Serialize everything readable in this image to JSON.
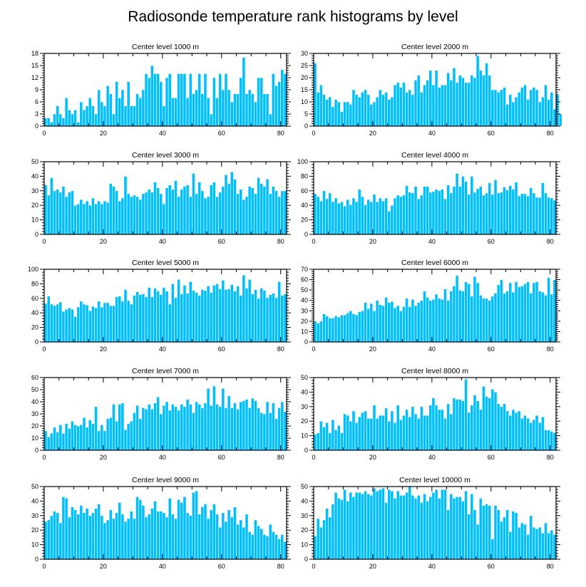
{
  "figure": {
    "title": "Radiosonde temperature rank histograms by level"
  },
  "colors": {
    "bar": "#00bfff",
    "bar_edge": "#ffffff",
    "frame": "#000000"
  },
  "chart_data": [
    {
      "type": "bar",
      "title": "Center level 1000 m",
      "xlim": [
        0,
        82
      ],
      "ylim": [
        0,
        18
      ],
      "xticks": [
        0,
        20,
        40,
        60,
        80
      ],
      "yticks": [
        0,
        3,
        6,
        9,
        12,
        15,
        18
      ],
      "values": [
        2,
        2,
        1,
        3,
        5,
        3,
        2,
        7,
        4,
        3,
        4,
        1,
        6,
        4,
        5,
        7,
        5,
        3,
        9,
        6,
        5,
        10,
        8,
        3,
        11,
        7,
        9,
        5,
        11,
        5,
        5,
        8,
        7,
        9,
        13,
        12,
        15,
        13,
        13,
        11,
        5,
        12,
        13,
        7,
        7,
        13,
        13,
        13,
        7,
        13,
        8,
        9,
        13,
        8,
        13,
        7,
        3,
        12,
        7,
        13,
        9,
        13,
        9,
        6,
        8,
        8,
        12,
        17,
        8,
        9,
        8,
        6,
        12,
        12,
        8,
        8,
        3,
        13,
        10,
        11,
        14,
        13
      ]
    },
    {
      "type": "bar",
      "title": "Center level 2000 m",
      "xlim": [
        0,
        82
      ],
      "ylim": [
        0,
        30
      ],
      "xticks": [
        0,
        20,
        40,
        60,
        80
      ],
      "yticks": [
        0,
        5,
        10,
        15,
        20,
        25,
        30
      ],
      "values": [
        26,
        14,
        17,
        13,
        11,
        12,
        8,
        11,
        10,
        6,
        10,
        10,
        9,
        15,
        13,
        12,
        14,
        15,
        13,
        9,
        10,
        12,
        15,
        13,
        14,
        11,
        12,
        17,
        18,
        16,
        18,
        14,
        15,
        13,
        19,
        21,
        14,
        17,
        19,
        23,
        17,
        23,
        16,
        17,
        17,
        22,
        19,
        24,
        18,
        21,
        20,
        18,
        18,
        21,
        20,
        29,
        23,
        21,
        26,
        21,
        15,
        15,
        14,
        15,
        16,
        9,
        13,
        10,
        12,
        14,
        16,
        17,
        11,
        15,
        16,
        15,
        10,
        12,
        17,
        11,
        14,
        7,
        13,
        5
      ]
    },
    {
      "type": "bar",
      "title": "Center level 3000 m",
      "xlim": [
        0,
        82
      ],
      "ylim": [
        0,
        50
      ],
      "xticks": [
        0,
        20,
        40,
        60,
        80
      ],
      "yticks": [
        0,
        10,
        20,
        30,
        40,
        50
      ],
      "values": [
        34,
        27,
        39,
        30,
        31,
        29,
        33,
        26,
        29,
        30,
        20,
        21,
        24,
        21,
        23,
        20,
        25,
        21,
        23,
        21,
        23,
        22,
        35,
        33,
        30,
        23,
        25,
        40,
        28,
        26,
        27,
        26,
        24,
        28,
        29,
        31,
        29,
        36,
        32,
        28,
        21,
        32,
        34,
        31,
        37,
        26,
        31,
        33,
        34,
        26,
        42,
        28,
        36,
        30,
        25,
        26,
        34,
        36,
        26,
        29,
        33,
        41,
        35,
        43,
        38,
        28,
        31,
        24,
        26,
        33,
        32,
        28,
        39,
        35,
        33,
        38,
        28,
        33,
        30,
        26,
        30,
        30
      ]
    },
    {
      "type": "bar",
      "title": "Center level 4000 m",
      "xlim": [
        0,
        82
      ],
      "ylim": [
        0,
        100
      ],
      "xticks": [
        0,
        20,
        40,
        60,
        80
      ],
      "yticks": [
        0,
        20,
        40,
        60,
        80,
        100
      ],
      "values": [
        56,
        52,
        46,
        60,
        49,
        57,
        45,
        50,
        43,
        45,
        39,
        48,
        41,
        50,
        45,
        62,
        52,
        41,
        48,
        45,
        55,
        45,
        50,
        46,
        50,
        32,
        40,
        50,
        54,
        52,
        54,
        67,
        58,
        57,
        66,
        49,
        54,
        66,
        66,
        58,
        59,
        62,
        60,
        62,
        49,
        68,
        57,
        66,
        84,
        66,
        80,
        73,
        55,
        80,
        58,
        63,
        66,
        54,
        57,
        71,
        55,
        75,
        57,
        58,
        65,
        61,
        67,
        62,
        72,
        53,
        56,
        56,
        53,
        64,
        57,
        51,
        51,
        71,
        57,
        51,
        50,
        47
      ]
    },
    {
      "type": "bar",
      "title": "Center level 5000 m",
      "xlim": [
        0,
        82
      ],
      "ylim": [
        0,
        100
      ],
      "xticks": [
        0,
        20,
        40,
        60,
        80
      ],
      "yticks": [
        0,
        20,
        40,
        60,
        80,
        100
      ],
      "values": [
        53,
        63,
        52,
        50,
        52,
        55,
        42,
        45,
        47,
        45,
        35,
        48,
        56,
        52,
        51,
        43,
        49,
        47,
        56,
        48,
        54,
        54,
        50,
        50,
        62,
        63,
        56,
        72,
        57,
        52,
        64,
        69,
        65,
        66,
        62,
        75,
        62,
        74,
        70,
        65,
        75,
        70,
        52,
        80,
        61,
        86,
        66,
        78,
        67,
        83,
        71,
        68,
        64,
        72,
        71,
        77,
        68,
        78,
        80,
        73,
        85,
        72,
        73,
        79,
        70,
        77,
        64,
        92,
        74,
        86,
        66,
        72,
        60,
        74,
        71,
        61,
        65,
        67,
        61,
        83,
        64,
        66
      ]
    },
    {
      "type": "bar",
      "title": "Center level 6000 m",
      "xlim": [
        0,
        82
      ],
      "ylim": [
        0,
        70
      ],
      "xticks": [
        0,
        20,
        40,
        60,
        80
      ],
      "yticks": [
        0,
        10,
        20,
        30,
        40,
        50,
        60,
        70
      ],
      "values": [
        20,
        18,
        20,
        27,
        25,
        23,
        23,
        25,
        24,
        26,
        26,
        28,
        30,
        27,
        26,
        29,
        30,
        38,
        32,
        37,
        30,
        40,
        36,
        35,
        43,
        38,
        39,
        33,
        35,
        30,
        34,
        42,
        34,
        41,
        35,
        38,
        40,
        49,
        43,
        40,
        41,
        46,
        42,
        41,
        51,
        40,
        49,
        54,
        64,
        50,
        49,
        58,
        56,
        44,
        63,
        57,
        45,
        42,
        42,
        40,
        44,
        47,
        55,
        60,
        47,
        49,
        57,
        48,
        58,
        53,
        54,
        56,
        58,
        47,
        57,
        58,
        49,
        48,
        45,
        62,
        46,
        60
      ]
    },
    {
      "type": "bar",
      "title": "Center level 7000 m",
      "xlim": [
        0,
        82
      ],
      "ylim": [
        0,
        60
      ],
      "xticks": [
        0,
        20,
        40,
        60,
        80
      ],
      "yticks": [
        0,
        10,
        20,
        30,
        40,
        50,
        60
      ],
      "values": [
        16,
        11,
        14,
        19,
        15,
        21,
        14,
        22,
        18,
        24,
        21,
        20,
        21,
        27,
        19,
        25,
        22,
        36,
        16,
        21,
        16,
        26,
        27,
        38,
        24,
        38,
        39,
        17,
        22,
        24,
        31,
        37,
        26,
        35,
        34,
        38,
        34,
        39,
        44,
        30,
        37,
        40,
        33,
        38,
        36,
        33,
        38,
        36,
        42,
        38,
        31,
        40,
        38,
        35,
        39,
        51,
        37,
        53,
        38,
        36,
        51,
        35,
        45,
        35,
        39,
        34,
        40,
        41,
        42,
        35,
        43,
        41,
        35,
        31,
        30,
        40,
        31,
        39,
        26,
        35,
        40,
        32
      ]
    },
    {
      "type": "bar",
      "title": "Center level 8000 m",
      "xlim": [
        0,
        82
      ],
      "ylim": [
        0,
        50
      ],
      "xticks": [
        0,
        20,
        40,
        60,
        80
      ],
      "yticks": [
        0,
        10,
        20,
        30,
        40,
        50
      ],
      "values": [
        11,
        12,
        20,
        16,
        19,
        12,
        21,
        14,
        17,
        12,
        25,
        24,
        20,
        27,
        19,
        23,
        26,
        27,
        22,
        22,
        31,
        22,
        24,
        24,
        29,
        20,
        27,
        19,
        31,
        21,
        24,
        28,
        23,
        30,
        25,
        22,
        30,
        24,
        24,
        31,
        36,
        31,
        28,
        28,
        22,
        32,
        25,
        36,
        35,
        35,
        34,
        49,
        26,
        31,
        38,
        34,
        28,
        44,
        37,
        36,
        42,
        40,
        32,
        30,
        32,
        27,
        24,
        28,
        26,
        27,
        22,
        24,
        22,
        19,
        21,
        24,
        19,
        23,
        14,
        14,
        13,
        12
      ]
    },
    {
      "type": "bar",
      "title": "Center level 9000 m",
      "xlim": [
        0,
        82
      ],
      "ylim": [
        0,
        50
      ],
      "xticks": [
        0,
        20,
        40,
        60,
        80
      ],
      "yticks": [
        0,
        10,
        20,
        30,
        40,
        50
      ],
      "values": [
        26,
        27,
        30,
        33,
        32,
        25,
        43,
        42,
        29,
        36,
        34,
        31,
        37,
        32,
        35,
        30,
        32,
        35,
        38,
        30,
        25,
        27,
        34,
        28,
        32,
        39,
        31,
        26,
        28,
        33,
        28,
        43,
        41,
        37,
        29,
        31,
        35,
        40,
        33,
        33,
        32,
        29,
        42,
        31,
        28,
        41,
        39,
        43,
        32,
        30,
        46,
        47,
        31,
        36,
        38,
        28,
        34,
        38,
        31,
        22,
        32,
        26,
        34,
        29,
        36,
        24,
        27,
        22,
        31,
        19,
        17,
        27,
        23,
        21,
        17,
        16,
        24,
        19,
        17,
        14,
        17,
        12
      ]
    },
    {
      "type": "bar",
      "title": "Center level 10000 m",
      "xlim": [
        0,
        82
      ],
      "ylim": [
        0,
        50
      ],
      "xticks": [
        0,
        20,
        40,
        60,
        80
      ],
      "yticks": [
        0,
        10,
        20,
        30,
        40,
        50
      ],
      "values": [
        16,
        28,
        22,
        27,
        35,
        29,
        38,
        46,
        42,
        41,
        48,
        40,
        46,
        43,
        46,
        46,
        45,
        47,
        45,
        44,
        49,
        47,
        48,
        49,
        39,
        48,
        47,
        42,
        47,
        44,
        44,
        46,
        50,
        44,
        42,
        44,
        39,
        45,
        40,
        43,
        46,
        48,
        42,
        48,
        48,
        34,
        45,
        42,
        43,
        43,
        40,
        47,
        31,
        45,
        34,
        24,
        42,
        37,
        38,
        37,
        14,
        37,
        34,
        26,
        29,
        34,
        19,
        33,
        32,
        22,
        25,
        24,
        17,
        30,
        22,
        21,
        22,
        18,
        25,
        18,
        20,
        17
      ]
    }
  ]
}
